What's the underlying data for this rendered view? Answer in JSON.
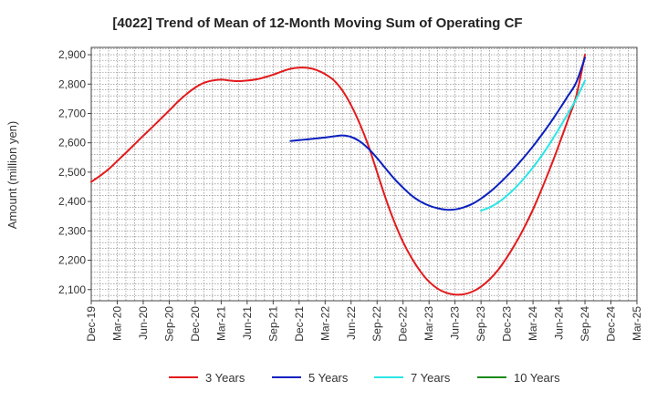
{
  "chart_data": {
    "type": "line",
    "title": "[4022]  Trend of Mean of 12-Month Moving Sum of Operating CF",
    "xlabel": "",
    "ylabel": "Amount (million yen)",
    "x_ticks": [
      "Dec-19",
      "Mar-20",
      "Jun-20",
      "Sep-20",
      "Dec-20",
      "Mar-21",
      "Jun-21",
      "Sep-21",
      "Dec-21",
      "Mar-22",
      "Jun-22",
      "Sep-22",
      "Dec-22",
      "Mar-23",
      "Jun-23",
      "Sep-23",
      "Dec-23",
      "Mar-24",
      "Jun-24",
      "Sep-24",
      "Dec-24",
      "Mar-25"
    ],
    "y_ticks": [
      2100,
      2200,
      2300,
      2400,
      2500,
      2600,
      2700,
      2800,
      2900
    ],
    "y_tick_labels": [
      "2,100",
      "2,200",
      "2,300",
      "2,400",
      "2,500",
      "2,600",
      "2,700",
      "2,800",
      "2,900"
    ],
    "ylim": [
      2062,
      2925
    ],
    "grid": true,
    "legend_position": "bottom",
    "series": [
      {
        "name": "3 Years",
        "color": "#e31a1c",
        "x": [
          "Dec-19",
          "Jan-20",
          "Feb-20",
          "Mar-20",
          "Apr-20",
          "May-20",
          "Jun-20",
          "Jul-20",
          "Aug-20",
          "Sep-20",
          "Oct-20",
          "Nov-20",
          "Dec-20",
          "Jan-21",
          "Feb-21",
          "Mar-21",
          "Apr-21",
          "May-21",
          "Jun-21",
          "Jul-21",
          "Aug-21",
          "Sep-21",
          "Oct-21",
          "Nov-21",
          "Dec-21",
          "Jan-22",
          "Feb-22",
          "Mar-22",
          "Apr-22",
          "May-22",
          "Jun-22",
          "Jul-22",
          "Aug-22",
          "Sep-22",
          "Oct-22",
          "Nov-22",
          "Dec-22",
          "Jan-23",
          "Feb-23",
          "Mar-23",
          "Apr-23",
          "May-23",
          "Jun-23",
          "Jul-23",
          "Aug-23",
          "Sep-23",
          "Oct-23",
          "Nov-23",
          "Dec-23",
          "Jan-24",
          "Feb-24",
          "Mar-24",
          "Apr-24",
          "May-24",
          "Jun-24",
          "Jul-24",
          "Aug-24",
          "Sep-24"
        ],
        "values": [
          2467,
          2487,
          2510,
          2538,
          2566,
          2595,
          2624,
          2652,
          2681,
          2710,
          2740,
          2766,
          2788,
          2804,
          2812,
          2815,
          2812,
          2810,
          2812,
          2816,
          2823,
          2832,
          2843,
          2852,
          2856,
          2855,
          2848,
          2834,
          2813,
          2778,
          2728,
          2665,
          2590,
          2500,
          2410,
          2330,
          2262,
          2207,
          2162,
          2127,
          2103,
          2089,
          2083,
          2084,
          2093,
          2110,
          2135,
          2168,
          2210,
          2258,
          2312,
          2373,
          2442,
          2515,
          2593,
          2675,
          2760,
          2900
        ]
      },
      {
        "name": "5 Years",
        "color": "#0a1fbf",
        "x": [
          "Nov-21",
          "Dec-21",
          "Jan-22",
          "Feb-22",
          "Mar-22",
          "Apr-22",
          "May-22",
          "Jun-22",
          "Jul-22",
          "Aug-22",
          "Sep-22",
          "Oct-22",
          "Nov-22",
          "Dec-22",
          "Jan-23",
          "Feb-23",
          "Mar-23",
          "Apr-23",
          "May-23",
          "Jun-23",
          "Jul-23",
          "Aug-23",
          "Sep-23",
          "Oct-23",
          "Nov-23",
          "Dec-23",
          "Jan-24",
          "Feb-24",
          "Mar-24",
          "Apr-24",
          "May-24",
          "Jun-24",
          "Jul-24",
          "Aug-24",
          "Sep-24"
        ],
        "values": [
          2606,
          2609,
          2612,
          2615,
          2618,
          2622,
          2625,
          2620,
          2605,
          2580,
          2548,
          2512,
          2477,
          2447,
          2420,
          2400,
          2386,
          2377,
          2372,
          2373,
          2380,
          2392,
          2410,
          2432,
          2458,
          2487,
          2518,
          2552,
          2588,
          2627,
          2668,
          2712,
          2758,
          2806,
          2890
        ]
      },
      {
        "name": "7 Years",
        "color": "#2ae6e6",
        "x": [
          "Sep-23",
          "Oct-23",
          "Nov-23",
          "Dec-23",
          "Jan-24",
          "Feb-24",
          "Mar-24",
          "Apr-24",
          "May-24",
          "Jun-24",
          "Jul-24",
          "Aug-24",
          "Sep-24"
        ],
        "values": [
          2369,
          2380,
          2397,
          2420,
          2448,
          2480,
          2516,
          2556,
          2600,
          2648,
          2698,
          2750,
          2812
        ]
      },
      {
        "name": "10 Years",
        "color": "#1a8a1a",
        "x": [],
        "values": []
      }
    ]
  }
}
